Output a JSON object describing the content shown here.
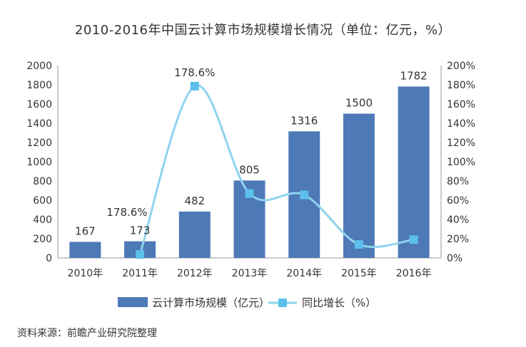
{
  "title": "2010-2016年中国云计算市场规模增长情况（单位：亿元，%）",
  "source": "资料来源：前瞻产业研究院整理",
  "colors": {
    "bar": "#4e79b7",
    "line": "#8fd3ee",
    "marker": "#5cc0ea"
  },
  "chart_data": {
    "type": "bar",
    "categories": [
      "2010年",
      "2011年",
      "2012年",
      "2013年",
      "2014年",
      "2015年",
      "2016年"
    ],
    "series": [
      {
        "name": "云计算市场规模（亿元）",
        "type": "bar",
        "axis": "left",
        "values": [
          167,
          173,
          482,
          805,
          1316,
          1500,
          1782
        ],
        "labels": [
          "167",
          "173",
          "482",
          "805",
          "1316",
          "1500",
          "1782"
        ]
      },
      {
        "name": "同比增长（%）",
        "type": "line",
        "axis": "right",
        "smooth": true,
        "values": [
          null,
          3.6,
          178.6,
          67,
          65.5,
          14,
          19
        ],
        "labels": [
          null,
          null,
          "178.6%",
          null,
          null,
          null,
          null
        ]
      }
    ],
    "annotation": "178.6%",
    "y_left": {
      "ylim": [
        0,
        2000
      ],
      "ticks": [
        "0",
        "200",
        "400",
        "600",
        "800",
        "1000",
        "1200",
        "1400",
        "1600",
        "1800",
        "2000"
      ]
    },
    "y_right": {
      "ylim": [
        0,
        200
      ],
      "ticks": [
        "0%",
        "20%",
        "40%",
        "60%",
        "80%",
        "100%",
        "120%",
        "140%",
        "160%",
        "180%",
        "200%"
      ]
    },
    "grid": false,
    "legend_position": "bottom"
  }
}
